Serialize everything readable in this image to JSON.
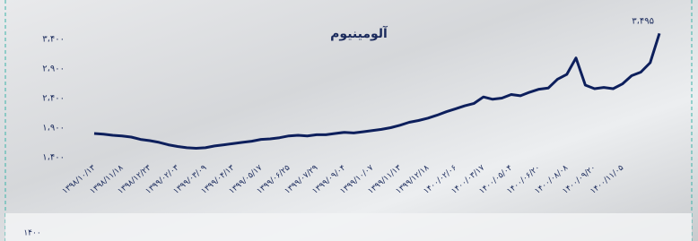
{
  "chart_data": {
    "type": "line",
    "title": "آلومینیوم",
    "categories": [
      "۱۳۹۸/۱۰/۱۳",
      null,
      null,
      "۱۳۹۸/۱۱/۱۸",
      null,
      null,
      "۱۳۹۸/۱۲/۲۳",
      null,
      null,
      "۱۳۹۹/۰۲/۰۳",
      null,
      null,
      "۱۳۹۹/۰۳/۰۹",
      null,
      null,
      "۱۳۹۹/۰۴/۱۳",
      null,
      null,
      "۱۳۹۹/۰۵/۱۷",
      null,
      null,
      "۱۳۹۹/۰۶/۲۵",
      null,
      null,
      "۱۳۹۹/۰۷/۲۹",
      null,
      null,
      "۱۳۹۹/۰۹/۰۴",
      null,
      null,
      "۱۳۹۹/۱۰/۰۷",
      null,
      null,
      "۱۳۹۹/۱۱/۱۳",
      null,
      null,
      "۱۳۹۹/۱۲/۱۸",
      null,
      null,
      "۱۴۰۰/۰۲/۰۶",
      null,
      null,
      "۱۴۰۰/۰۳/۱۷",
      null,
      null,
      "۱۴۰۰/۰۵/۰۴",
      null,
      null,
      "۱۴۰۰/۰۶/۲۰",
      null,
      null,
      "۱۴۰۰/۰۸/۰۸",
      null,
      null,
      "۱۴۰۰/۰۹/۲۰",
      null,
      null,
      "۱۴۰۰/۱۱/۰۵",
      null,
      null,
      null,
      null
    ],
    "series": [
      {
        "color": "#0d1f5c",
        "values": [
          1800,
          1790,
          1770,
          1760,
          1740,
          1700,
          1680,
          1650,
          1610,
          1580,
          1560,
          1550,
          1560,
          1590,
          1610,
          1630,
          1650,
          1670,
          1700,
          1710,
          1730,
          1760,
          1770,
          1760,
          1780,
          1780,
          1800,
          1820,
          1810,
          1830,
          1850,
          1870,
          1900,
          1940,
          1990,
          2020,
          2060,
          2110,
          2170,
          2220,
          2270,
          2310,
          2420,
          2380,
          2400,
          2460,
          2440,
          2500,
          2550,
          2570,
          2720,
          2800,
          3080,
          2620,
          2560,
          2580,
          2560,
          2640,
          2780,
          2840,
          3000,
          3495
        ],
        "value_labels": [
          null,
          null,
          null,
          null,
          null,
          null,
          null,
          null,
          null,
          null,
          null,
          null,
          null,
          null,
          null,
          null,
          null,
          null,
          null,
          null,
          null,
          null,
          null,
          null,
          null,
          null,
          null,
          null,
          null,
          null,
          null,
          null,
          null,
          null,
          null,
          null,
          null,
          null,
          null,
          null,
          null,
          null,
          null,
          null,
          null,
          null,
          null,
          null,
          null,
          null,
          null,
          null,
          null,
          null,
          null,
          null,
          null,
          null,
          null,
          null,
          null,
          "۳،۴۹۵"
        ]
      }
    ],
    "ylim": [
      1300,
      3500
    ],
    "yticks": [
      {
        "value": 1400,
        "label": "۱،۴۰۰"
      },
      {
        "value": 1900,
        "label": "۱،۹۰۰"
      },
      {
        "value": 2400,
        "label": "۲،۴۰۰"
      },
      {
        "value": 2900,
        "label": "۲،۹۰۰"
      },
      {
        "value": 3400,
        "label": "۳،۴۰۰"
      }
    ],
    "footer_text": "۱۴۰۰"
  }
}
